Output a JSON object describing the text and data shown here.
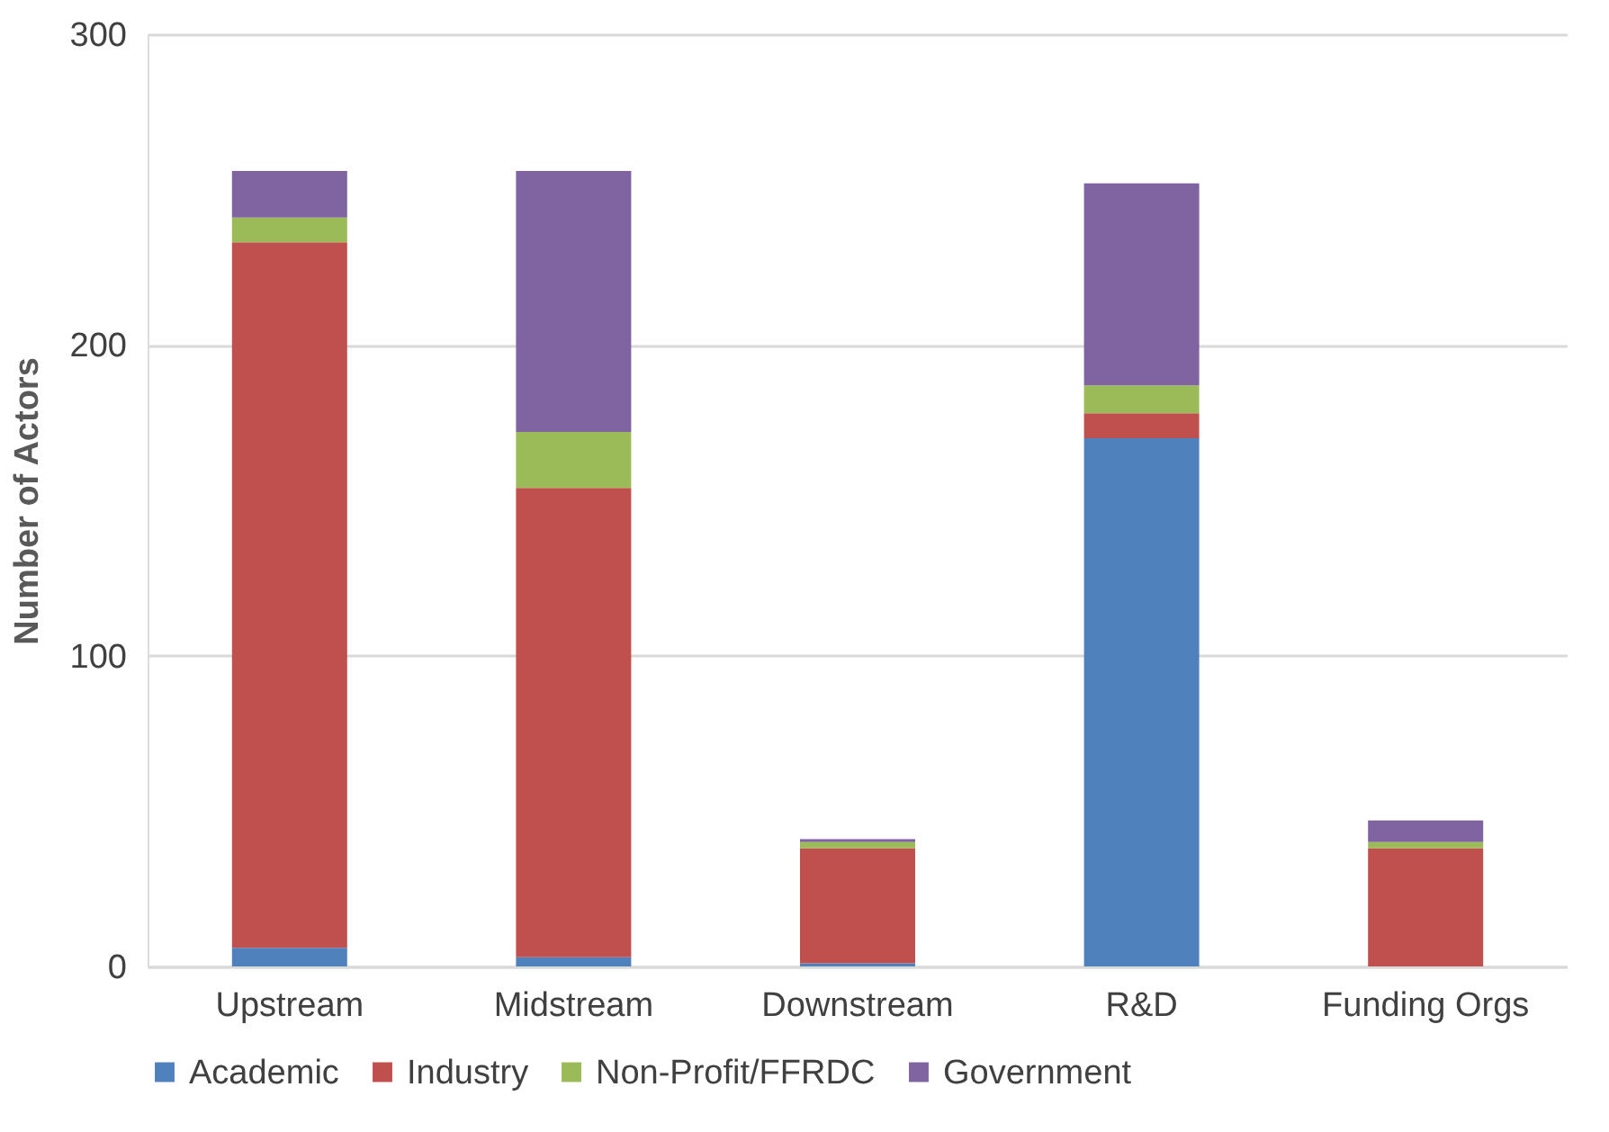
{
  "chart_data": {
    "type": "bar",
    "stacked": true,
    "ylabel": "Number of Actors",
    "categories": [
      "Upstream",
      "Midstream",
      "Downstream",
      "R&D",
      "Funding Orgs"
    ],
    "series": [
      {
        "name": "Academic",
        "color": "#4f81bd",
        "values": [
          6,
          3,
          1,
          170,
          0
        ]
      },
      {
        "name": "Industry",
        "color": "#c0504d",
        "values": [
          227,
          151,
          37,
          8,
          38
        ]
      },
      {
        "name": "Non-Profit/FFRDC",
        "color": "#9bbb59",
        "values": [
          8,
          18,
          2,
          9,
          2
        ]
      },
      {
        "name": "Government",
        "color": "#8064a2",
        "values": [
          15,
          84,
          1,
          65,
          7
        ]
      }
    ],
    "ylim": [
      0,
      300
    ],
    "yticks": [
      0,
      100,
      200,
      300
    ],
    "grid": "y",
    "legend": "bottom"
  }
}
